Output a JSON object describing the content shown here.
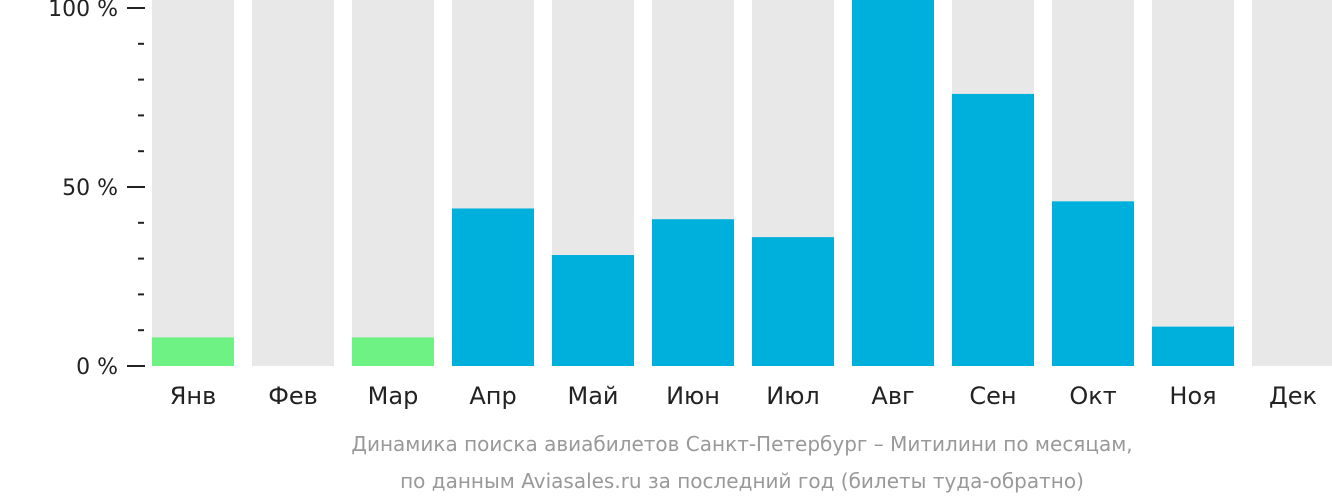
{
  "chart_data": {
    "type": "bar",
    "categories": [
      "Янв",
      "Фев",
      "Мар",
      "Апр",
      "Май",
      "Июн",
      "Июл",
      "Авг",
      "Сен",
      "Окт",
      "Ноя",
      "Дек"
    ],
    "values": [
      8,
      0,
      8,
      44,
      31,
      41,
      36,
      100,
      76,
      46,
      11,
      0
    ],
    "highlight": [
      true,
      false,
      true,
      false,
      false,
      false,
      false,
      false,
      false,
      false,
      false,
      false
    ],
    "ylim": [
      0,
      100
    ],
    "yticks": [
      {
        "value": 100,
        "label": "100 %"
      },
      {
        "value": 50,
        "label": "50 %"
      },
      {
        "value": 0,
        "label": "0 %"
      }
    ],
    "minor_ticks": [
      10,
      20,
      30,
      40,
      60,
      70,
      80,
      90
    ],
    "caption": [
      "Динамика поиска авиабилетов Санкт-Петербург – Митилини по месяцам,",
      "по данным Aviasales.ru за последний год (билеты туда-обратно)"
    ],
    "colors": {
      "bar": "#00b0dc",
      "bar_highlight": "#6ef283",
      "track": "#e8e8e8",
      "axis": "#222222"
    }
  }
}
